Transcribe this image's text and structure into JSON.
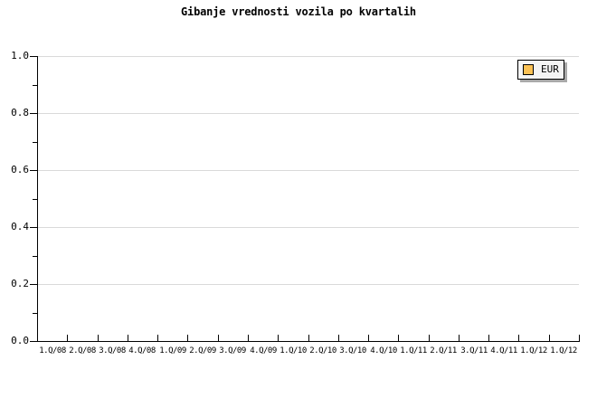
{
  "chart_data": {
    "type": "line",
    "title": "Gibanje vrednosti vozila po kvartalih",
    "categories": [
      "1.Q/08",
      "2.Q/08",
      "3.Q/08",
      "4.Q/08",
      "1.Q/09",
      "2.Q/09",
      "3.Q/09",
      "4.Q/09",
      "1.Q/10",
      "2.Q/10",
      "3.Q/10",
      "4.Q/10",
      "1.Q/11",
      "2.Q/11",
      "3.Q/11",
      "4.Q/11",
      "1.Q/12",
      "1.Q/12"
    ],
    "series": [
      {
        "name": "EUR",
        "color": "#fbc154",
        "values": []
      }
    ],
    "xlabel": "",
    "ylabel": "",
    "ylim": [
      0.0,
      1.0
    ],
    "y_tick_labels": [
      "1.0",
      "0.8",
      "0.6",
      "0.4",
      "0.2",
      "0.0"
    ],
    "y_major_tick_step": 0.2,
    "y_minor_tick_step": 0.1,
    "grid": "horizontal-major-only",
    "legend_position": "top-right"
  },
  "legend": {
    "items": [
      {
        "label": "EUR",
        "swatch_color": "#fbc154"
      }
    ]
  },
  "colors": {
    "background": "#ffffff",
    "axis": "#000000",
    "gridline": "#dadada",
    "text": "#000000",
    "legend_background": "#f4f4f4",
    "legend_border": "#000000",
    "legend_shadow": "#a9a9a9",
    "series_eur": "#fbc154"
  }
}
